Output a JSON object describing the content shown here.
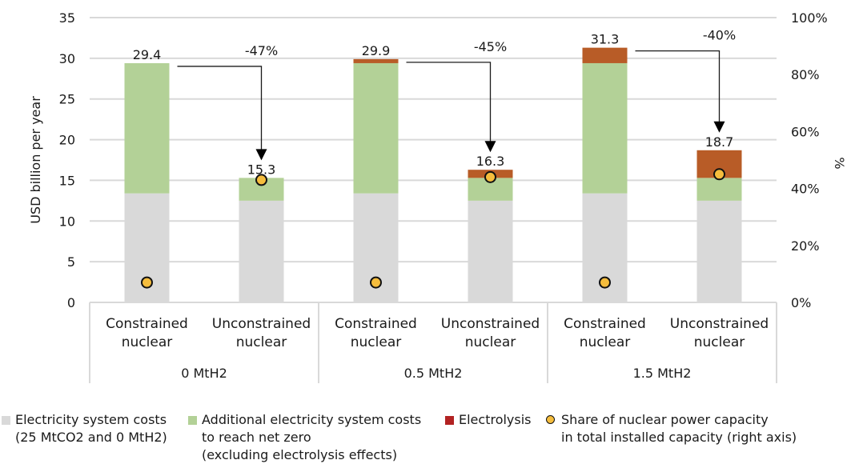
{
  "chart_data": {
    "type": "bar",
    "stacked": true,
    "title": "",
    "ylabel": "USD billion per year",
    "y2label": "%",
    "ylim": [
      0,
      35
    ],
    "y_ticks": [
      0,
      5,
      10,
      15,
      20,
      25,
      30,
      35
    ],
    "y_tick_labels": [
      "0",
      "5",
      "10",
      "15",
      "20",
      "25",
      "30",
      "35"
    ],
    "y2lim": [
      0,
      100
    ],
    "y2_ticks": [
      0,
      20,
      40,
      60,
      80,
      100
    ],
    "y2_tick_labels": [
      "0%",
      "20%",
      "40%",
      "60%",
      "80%",
      "100%"
    ],
    "grid": true,
    "legend_position": "bottom",
    "groups": [
      {
        "label": "0 MtH2",
        "categories": [
          "Constrained\nnuclear",
          "Unconstrained\nnuclear"
        ]
      },
      {
        "label": "0.5 MtH2",
        "categories": [
          "Constrained\nnuclear",
          "Unconstrained\nnuclear"
        ]
      },
      {
        "label": "1.5 MtH2",
        "categories": [
          "Constrained\nnuclear",
          "Unconstrained\nnuclear"
        ]
      }
    ],
    "categories": [
      "0 MtH2 / Constrained nuclear",
      "0 MtH2 / Unconstrained nuclear",
      "0.5 MtH2 / Constrained nuclear",
      "0.5 MtH2 / Unconstrained nuclear",
      "1.5 MtH2 / Constrained nuclear",
      "1.5 MtH2 / Unconstrained nuclear"
    ],
    "series": [
      {
        "name": "Electricity system costs\n(25 MtCO2 and 0 MtH2)",
        "kind": "bar",
        "color": "#d9d9d9",
        "values": [
          13.4,
          12.5,
          13.4,
          12.5,
          13.4,
          12.5
        ]
      },
      {
        "name": "Additional electricity system costs\nto reach net zero\n(excluding electrolysis effects)",
        "kind": "bar",
        "color": "#b3d197",
        "values": [
          16.0,
          2.8,
          16.0,
          2.8,
          16.0,
          2.8
        ]
      },
      {
        "name": "Electrolysis",
        "kind": "bar",
        "color": "#b85c27",
        "legend_color": "#b22222",
        "values": [
          0,
          0,
          0.5,
          1.0,
          1.9,
          3.4
        ]
      },
      {
        "name": "Share of nuclear power capacity\nin total installed capacity (right axis)",
        "kind": "dot",
        "axis": "right",
        "color": "#f5bd3d",
        "values": [
          7,
          43,
          7,
          44,
          7,
          45
        ]
      }
    ],
    "total_labels": [
      "29.4",
      "15.3",
      "29.9",
      "16.3",
      "31.3",
      "18.7"
    ],
    "totals": [
      29.4,
      15.3,
      29.9,
      16.3,
      31.3,
      18.7
    ],
    "annotations": [
      {
        "from": 0,
        "to": 1,
        "label": "-47%"
      },
      {
        "from": 2,
        "to": 3,
        "label": "-45%"
      },
      {
        "from": 4,
        "to": 5,
        "label": "-40%"
      }
    ]
  }
}
